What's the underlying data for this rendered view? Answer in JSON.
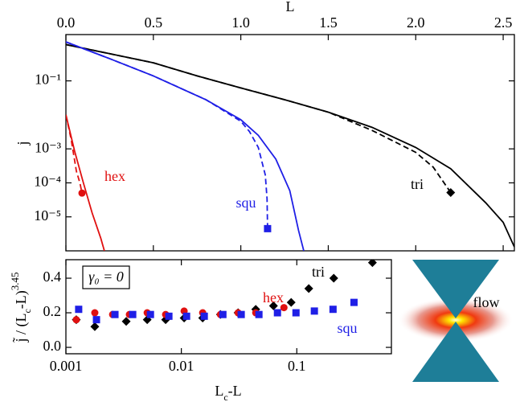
{
  "chart_data": [
    {
      "type": "line",
      "xlabel": "L",
      "ylabel": "j",
      "ylog": true,
      "xlim": [
        0,
        2.564
      ],
      "xticks": [
        {
          "value": 0,
          "label": "0.0"
        },
        0.5,
        {
          "value": 1,
          "label": "1.0"
        },
        1.5,
        {
          "value": 2,
          "label": "2.0"
        },
        2.5
      ],
      "ylim": [
        1e-06,
        2.3
      ],
      "yticks": [
        {
          "value": 0.1,
          "label": "10⁻¹"
        },
        {
          "value": 0.001,
          "label": "10⁻³"
        },
        {
          "value": 0.0001,
          "label": "10⁻⁴"
        },
        {
          "value": 1e-05,
          "label": "10⁻⁵"
        }
      ],
      "series": [
        {
          "color": "#000000",
          "dashed": false,
          "x": [
            0,
            0.25,
            0.5,
            0.75,
            1.0,
            1.25,
            1.5,
            1.75,
            2.0,
            2.2,
            2.4,
            2.5,
            2.564
          ],
          "values": [
            1.17,
            0.63,
            0.34,
            0.14,
            0.062,
            0.028,
            0.012,
            0.0043,
            0.0011,
            0.00026,
            2.6e-05,
            6.9e-06,
            1.3e-06
          ]
        },
        {
          "name": "tri",
          "color": "#000000",
          "dashed": true,
          "end_marker": "diamond",
          "x": [
            0,
            0.25,
            0.5,
            0.75,
            1.0,
            1.25,
            1.5,
            1.75,
            2.0,
            2.1,
            2.2
          ],
          "values": [
            1.17,
            0.63,
            0.34,
            0.14,
            0.062,
            0.028,
            0.012,
            0.0035,
            0.00079,
            0.00029,
            5.2e-05
          ]
        },
        {
          "color": "#1f1fe6",
          "dashed": false,
          "x": [
            0,
            0.25,
            0.5,
            0.8,
            1.0,
            1.1,
            1.2,
            1.28,
            1.33,
            1.36
          ],
          "values": [
            1.4,
            0.45,
            0.14,
            0.028,
            0.0072,
            0.0025,
            0.0005,
            5.9e-05,
            4e-06,
            1e-06
          ]
        },
        {
          "name": "squ",
          "color": "#1f1fe6",
          "dashed": true,
          "end_marker": "square",
          "x": [
            0,
            0.25,
            0.5,
            0.8,
            1.0,
            1.05,
            1.1,
            1.14,
            1.15,
            1.153
          ],
          "values": [
            1.4,
            0.45,
            0.14,
            0.028,
            0.0065,
            0.0032,
            0.0011,
            0.00017,
            3.4e-05,
            4.5e-06
          ]
        },
        {
          "color": "#e01010",
          "dashed": false,
          "x": [
            0,
            0.05,
            0.1,
            0.15,
            0.2,
            0.22
          ],
          "values": [
            0.01,
            0.00085,
            0.0001,
            1.3e-05,
            2.3e-06,
            1e-06
          ]
        },
        {
          "name": "hex",
          "color": "#e01010",
          "dashed": true,
          "end_marker": "circle",
          "x": [
            0,
            0.03,
            0.06,
            0.08,
            0.092
          ],
          "values": [
            0.01,
            0.0019,
            0.00022,
            0.0001,
            5e-05
          ]
        }
      ]
    },
    {
      "type": "scatter",
      "xlabel": [
        "L",
        "c",
        "-L"
      ],
      "ylabel": [
        "j̃ / (L",
        "c",
        "-L)",
        "3.45"
      ],
      "xlog": true,
      "annotation": "γ₀ = 0",
      "xlim": [
        0.001,
        0.66
      ],
      "xticks": [
        0.001,
        0.01,
        0.1
      ],
      "ylim": [
        -0.037,
        0.507
      ],
      "yticks": [
        {
          "value": 0,
          "label": "0.0"
        },
        0.2,
        0.4
      ],
      "series": [
        {
          "name": "tri",
          "color": "#000000",
          "marker": "diamond",
          "x": [
            0.00123,
            0.00178,
            0.00333,
            0.00506,
            0.00731,
            0.01057,
            0.0153,
            0.0218,
            0.031,
            0.0441,
            0.0628,
            0.0894,
            0.127,
            0.209,
            0.452
          ],
          "values": [
            0.16,
            0.12,
            0.15,
            0.16,
            0.16,
            0.17,
            0.17,
            0.19,
            0.2,
            0.22,
            0.24,
            0.26,
            0.34,
            0.4,
            0.49
          ]
        },
        {
          "name": "hex",
          "color": "#e01010",
          "marker": "circle",
          "x": [
            0.00123,
            0.00178,
            0.00254,
            0.00355,
            0.00506,
            0.00731,
            0.01057,
            0.0153,
            0.0218,
            0.031,
            0.0441,
            0.0774
          ],
          "values": [
            0.16,
            0.2,
            0.19,
            0.19,
            0.2,
            0.19,
            0.21,
            0.2,
            0.19,
            0.2,
            0.2,
            0.23
          ]
        },
        {
          "name": "squ",
          "color": "#1f1fe6",
          "marker": "square",
          "x": [
            0.00129,
            0.00184,
            0.00266,
            0.00379,
            0.0054,
            0.0078,
            0.0111,
            0.0158,
            0.0229,
            0.033,
            0.047,
            0.068,
            0.0984,
            0.142,
            0.206,
            0.313
          ],
          "values": [
            0.22,
            0.16,
            0.19,
            0.19,
            0.19,
            0.18,
            0.18,
            0.18,
            0.19,
            0.19,
            0.19,
            0.2,
            0.2,
            0.21,
            0.22,
            0.26
          ]
        }
      ]
    }
  ],
  "inset": {
    "label": "flow"
  }
}
